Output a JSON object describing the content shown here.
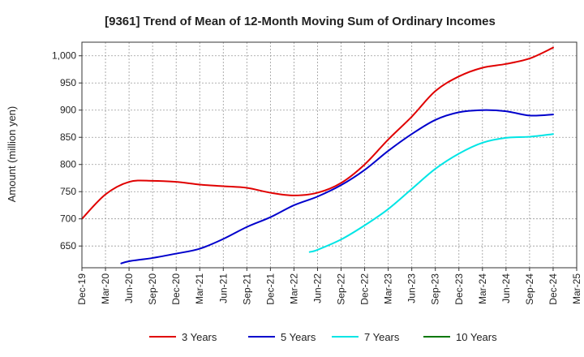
{
  "chart_data": {
    "type": "line",
    "title": "[9361]  Trend of Mean of 12-Month Moving Sum of Ordinary Incomes",
    "xlabel": "",
    "ylabel": "Amount (million yen)",
    "ylim": [
      610,
      1025
    ],
    "yticks": [
      650,
      700,
      750,
      800,
      850,
      900,
      950,
      1000
    ],
    "ytick_labels": [
      "650",
      "700",
      "750",
      "800",
      "850",
      "900",
      "950",
      "1,000"
    ],
    "xticks": [
      "Dec-19",
      "Mar-20",
      "Jun-20",
      "Sep-20",
      "Dec-20",
      "Mar-21",
      "Jun-21",
      "Sep-21",
      "Dec-21",
      "Mar-22",
      "Jun-22",
      "Sep-22",
      "Dec-22",
      "Mar-23",
      "Jun-23",
      "Sep-23",
      "Dec-23",
      "Mar-24",
      "Jun-24",
      "Sep-24",
      "Dec-24",
      "Mar-25"
    ],
    "x_unit": "months since Dec-19",
    "grid": true,
    "legend_position": "bottom",
    "series": [
      {
        "name": "3 Years",
        "color": "#e00000",
        "x": [
          0,
          3,
          6,
          9,
          12,
          15,
          18,
          21,
          24,
          27,
          30,
          33,
          36,
          39,
          42,
          45,
          48,
          51,
          54,
          57,
          60
        ],
        "values": [
          700,
          745,
          768,
          770,
          768,
          763,
          760,
          757,
          748,
          743,
          748,
          766,
          800,
          846,
          888,
          935,
          962,
          978,
          985,
          995,
          1015
        ]
      },
      {
        "name": "5 Years",
        "color": "#0000cc",
        "x": [
          5,
          6,
          9,
          12,
          15,
          18,
          21,
          24,
          27,
          30,
          33,
          36,
          39,
          42,
          45,
          48,
          51,
          54,
          57,
          60
        ],
        "values": [
          618,
          622,
          628,
          636,
          645,
          663,
          685,
          703,
          725,
          741,
          762,
          790,
          825,
          856,
          882,
          896,
          900,
          898,
          890,
          892
        ]
      },
      {
        "name": "7 Years",
        "color": "#00e5e5",
        "x": [
          29,
          30,
          33,
          36,
          39,
          42,
          45,
          48,
          51,
          54,
          57,
          60
        ],
        "values": [
          639,
          643,
          662,
          688,
          718,
          755,
          792,
          820,
          840,
          849,
          851,
          856
        ]
      },
      {
        "name": "10 Years",
        "color": "#007700",
        "x": [],
        "values": []
      }
    ]
  }
}
